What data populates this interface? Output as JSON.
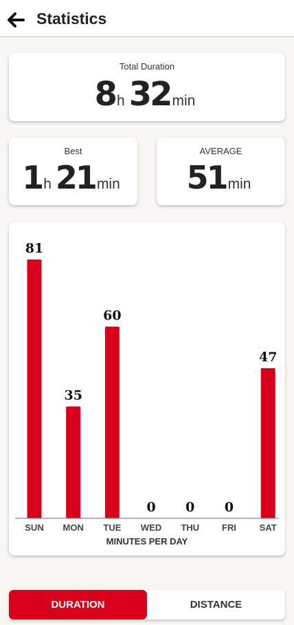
{
  "header": {
    "title": "Statistics",
    "back_icon": "arrow-left-icon"
  },
  "total": {
    "label": "Total Duration",
    "hours": "8",
    "hours_unit": "h",
    "minutes": "32",
    "minutes_unit": "min"
  },
  "best": {
    "label": "Best",
    "hours": "1",
    "hours_unit": "h",
    "minutes": "21",
    "minutes_unit": "min"
  },
  "average": {
    "label": "AVERAGE",
    "minutes": "51",
    "minutes_unit": "min"
  },
  "chart_data": {
    "type": "bar",
    "categories": [
      "SUN",
      "MON",
      "TUE",
      "WED",
      "THU",
      "FRI",
      "SAT"
    ],
    "values": [
      81,
      35,
      60,
      0,
      0,
      0,
      47
    ],
    "xlabel": "MINUTES PER DAY",
    "ylabel": "",
    "ylim": [
      0,
      81
    ],
    "bar_color": "#d9001b"
  },
  "tabs": {
    "active": "DURATION",
    "inactive": "DISTANCE"
  },
  "colors": {
    "accent": "#d9001b"
  }
}
